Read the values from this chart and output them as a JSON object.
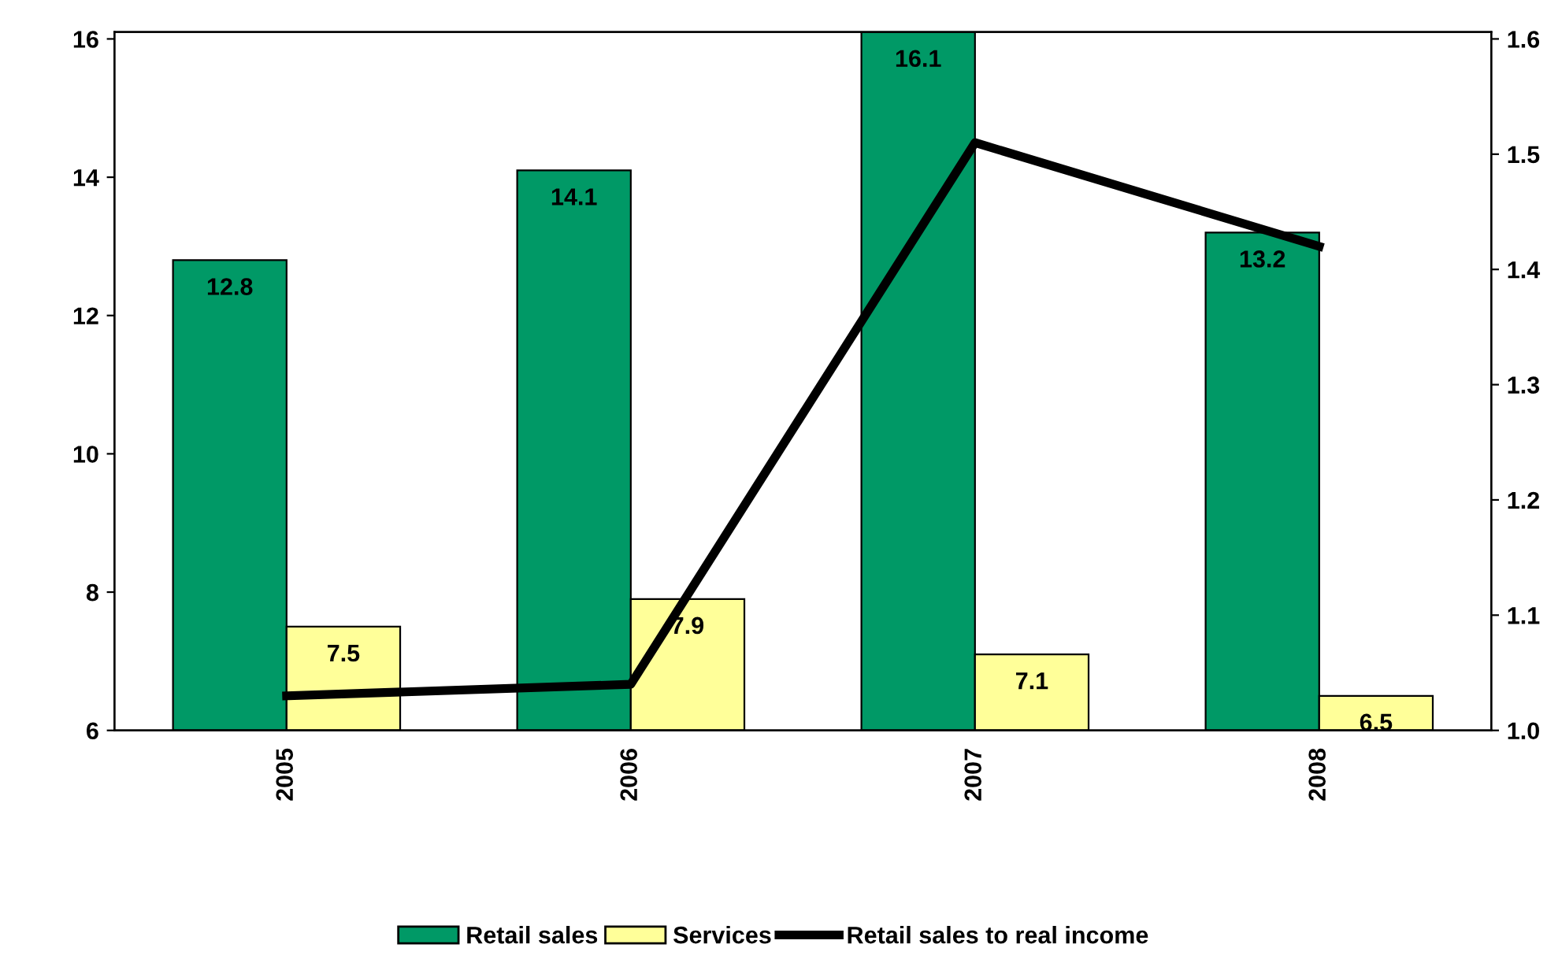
{
  "chart_data": {
    "type": "bar",
    "categories": [
      "2005",
      "2006",
      "2007",
      "2008"
    ],
    "series": [
      {
        "name": "Retail sales",
        "color": "#009966",
        "values": [
          12.8,
          14.1,
          16.1,
          13.2
        ],
        "value_labels": [
          "12.8",
          "14.1",
          "16.1",
          "13.2"
        ]
      },
      {
        "name": "Services",
        "color": "#ffff99",
        "values": [
          7.5,
          7.9,
          7.1,
          6.5
        ],
        "value_labels": [
          "7.5",
          "7.9",
          "7.1",
          "6.5"
        ]
      },
      {
        "name": "Retail sales to real income",
        "type": "line",
        "axis": "y2",
        "color": "#000000",
        "values": [
          1.03,
          1.04,
          1.51,
          1.42
        ]
      }
    ],
    "ylim": [
      6,
      16.1
    ],
    "yticks": [
      6,
      8,
      10,
      12,
      14,
      16
    ],
    "y2lim": [
      1.0,
      1.606
    ],
    "y2ticks": [
      {
        "value": 1.0,
        "label": "1.0"
      },
      1.1,
      1.2,
      1.3,
      1.4,
      1.5,
      1.6
    ],
    "grid": false,
    "legend": "bottom",
    "marker": "none",
    "line_style": "solid"
  }
}
